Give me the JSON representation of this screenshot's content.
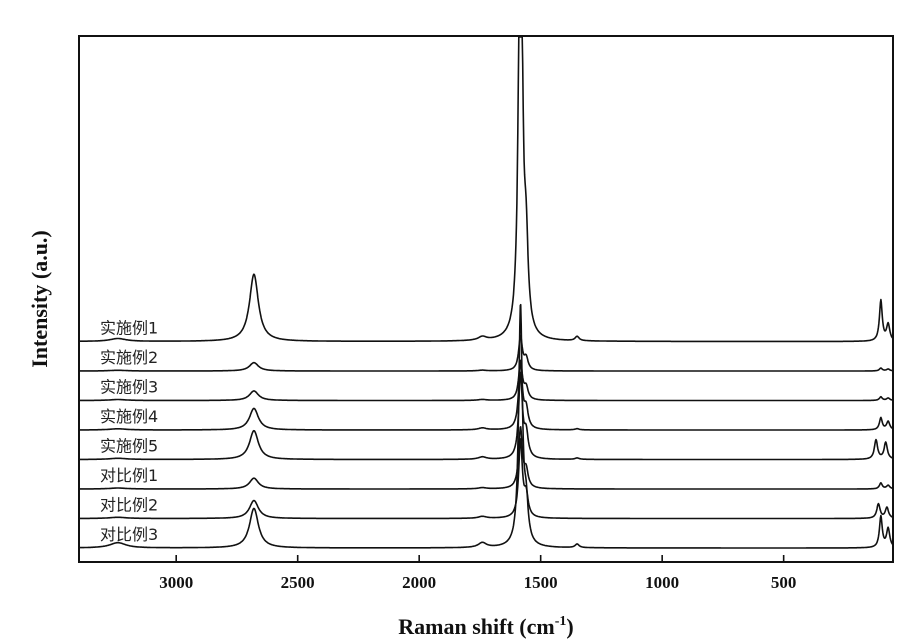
{
  "chart_data": {
    "type": "line",
    "title": "",
    "xlabel": "Raman shift (cm",
    "xlabel_sup": "-1",
    "xlabel_end": ")",
    "ylabel": "Intensity (a.u.)",
    "xlim": [
      3400,
      50
    ],
    "x_reversed": true,
    "x_ticks": [
      3000,
      2500,
      2000,
      1500,
      1000,
      500
    ],
    "y_ticks_labeled": false,
    "grid": false,
    "legend": "labels placed on each offset trace, left side",
    "stacked_offset": true,
    "series": [
      {
        "name": "实施例1",
        "offset": 7,
        "peaks": [
          [
            1583,
            21.0,
            9
          ],
          [
            1560,
            3.2,
            10
          ],
          [
            2680,
            2.8,
            22
          ],
          [
            3240,
            0.12,
            40
          ],
          [
            1740,
            0.15,
            20
          ],
          [
            1350,
            0.18,
            10
          ],
          [
            100,
            1.7,
            7
          ],
          [
            70,
            0.7,
            8
          ]
        ]
      },
      {
        "name": "实施例2",
        "offset": 6,
        "peaks": [
          [
            1583,
            1.4,
            9
          ],
          [
            1560,
            0.5,
            10
          ],
          [
            2680,
            0.35,
            22
          ],
          [
            3240,
            0.03,
            40
          ],
          [
            1740,
            0.03,
            20
          ],
          [
            100,
            0.12,
            7
          ],
          [
            70,
            0.08,
            8
          ]
        ]
      },
      {
        "name": "实施例3",
        "offset": 5,
        "peaks": [
          [
            1583,
            1.6,
            9
          ],
          [
            1560,
            0.5,
            10
          ],
          [
            2680,
            0.4,
            22
          ],
          [
            3240,
            0.04,
            40
          ],
          [
            1740,
            0.04,
            20
          ],
          [
            100,
            0.15,
            7
          ],
          [
            70,
            0.1,
            8
          ]
        ]
      },
      {
        "name": "实施例4",
        "offset": 4,
        "peaks": [
          [
            1583,
            2.8,
            9
          ],
          [
            1560,
            0.8,
            10
          ],
          [
            2680,
            0.9,
            22
          ],
          [
            3240,
            0.05,
            40
          ],
          [
            1740,
            0.08,
            20
          ],
          [
            1350,
            0.05,
            10
          ],
          [
            100,
            0.5,
            7
          ],
          [
            70,
            0.35,
            8
          ]
        ]
      },
      {
        "name": "实施例5",
        "offset": 3,
        "peaks": [
          [
            1583,
            3.5,
            9
          ],
          [
            1560,
            1.0,
            10
          ],
          [
            2680,
            1.2,
            22
          ],
          [
            3240,
            0.05,
            40
          ],
          [
            1740,
            0.1,
            20
          ],
          [
            1350,
            0.06,
            10
          ],
          [
            120,
            0.8,
            8
          ],
          [
            80,
            0.7,
            8
          ]
        ]
      },
      {
        "name": "对比例1",
        "offset": 2,
        "peaks": [
          [
            1583,
            2.5,
            9
          ],
          [
            1560,
            0.7,
            10
          ],
          [
            2680,
            0.45,
            22
          ],
          [
            3240,
            0.04,
            40
          ],
          [
            1740,
            0.05,
            20
          ],
          [
            100,
            0.25,
            7
          ],
          [
            70,
            0.15,
            8
          ]
        ]
      },
      {
        "name": "对比例2",
        "offset": 1,
        "peaks": [
          [
            1583,
            3.2,
            9
          ],
          [
            1560,
            0.9,
            10
          ],
          [
            2680,
            0.75,
            22
          ],
          [
            3240,
            0.05,
            40
          ],
          [
            1740,
            0.08,
            20
          ],
          [
            110,
            0.6,
            8
          ],
          [
            75,
            0.45,
            8
          ]
        ]
      },
      {
        "name": "对比例3",
        "offset": 0,
        "peaks": [
          [
            1583,
            10.0,
            9
          ],
          [
            1560,
            1.5,
            10
          ],
          [
            2680,
            1.65,
            22
          ],
          [
            3240,
            0.22,
            40
          ],
          [
            1740,
            0.2,
            20
          ],
          [
            1350,
            0.15,
            10
          ],
          [
            100,
            1.3,
            7
          ],
          [
            70,
            0.8,
            8
          ]
        ]
      }
    ]
  }
}
